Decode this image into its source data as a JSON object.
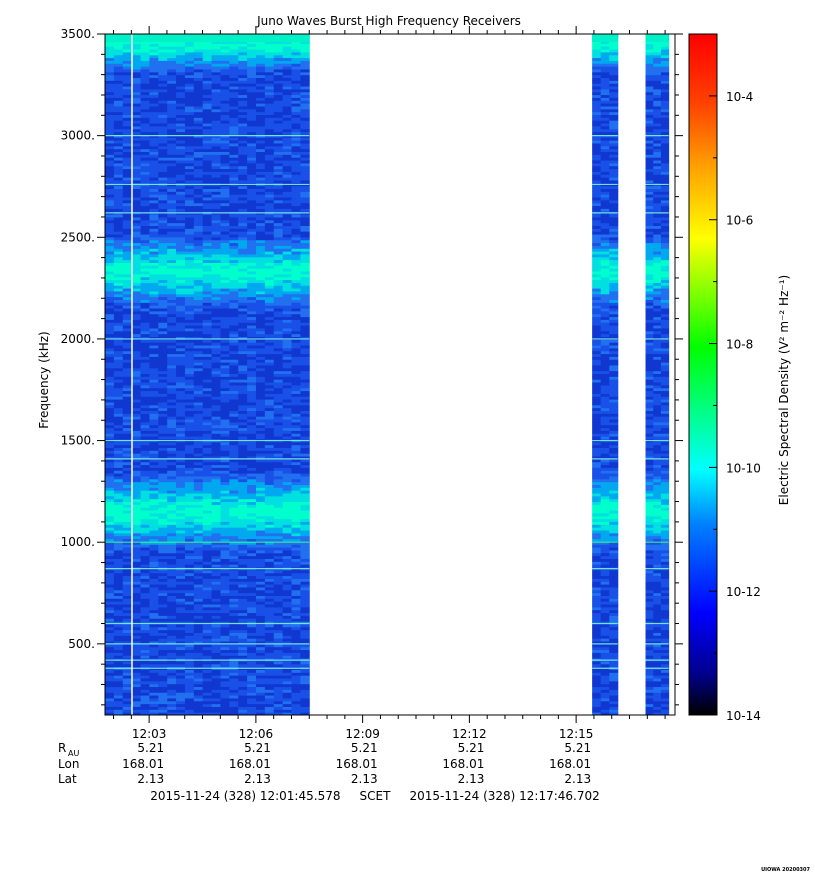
{
  "chart_data": {
    "type": "heatmap",
    "title": "Juno Waves Burst High Frequency Receivers",
    "ylabel": "Frequency (kHz)",
    "y_ticks": [
      "3500.",
      "3000.",
      "2500.",
      "2000.",
      "1500.",
      "1000.",
      "500."
    ],
    "y_tick_values": [
      3500,
      3000,
      2500,
      2000,
      1500,
      1000,
      500
    ],
    "ylim": [
      150,
      3500
    ],
    "xlim": [
      "12:01:45.578",
      "12:17:46.702"
    ],
    "x_ticks": [
      "12:03",
      "12:06",
      "12:09",
      "12:12",
      "12:15"
    ],
    "x_tick_minutes": [
      3,
      6,
      9,
      12,
      15
    ],
    "data_segments_minutes": [
      [
        1.76,
        7.5
      ],
      [
        15.45,
        16.17
      ],
      [
        16.95,
        17.6
      ]
    ],
    "enhanced_bands_khz": [
      [
        2250,
        2420
      ],
      [
        1050,
        1250
      ],
      [
        3400,
        3500
      ]
    ],
    "colorbar": {
      "label": "Electric Spectral Density",
      "units": "(V² m⁻² Hz⁻¹)",
      "scale": "log",
      "range": [
        1e-14,
        0.001
      ],
      "ticks": [
        "10-4",
        "10-6",
        "10-8",
        "10-10",
        "10-12",
        "10-14"
      ],
      "tick_exponents": [
        -4,
        -6,
        -8,
        -10,
        -12,
        -14
      ],
      "colors": [
        "#000000",
        "#00008b",
        "#0000ff",
        "#0080ff",
        "#00ffff",
        "#00ff80",
        "#00ff00",
        "#80ff00",
        "#ffff00",
        "#ffa500",
        "#ff4000",
        "#ff0000"
      ]
    },
    "ephemeris": {
      "rows": [
        {
          "label": "R",
          "sub": "AU",
          "values": [
            "5.21",
            "5.21",
            "5.21",
            "5.21",
            "5.21"
          ]
        },
        {
          "label": "Lon",
          "values": [
            "168.01",
            "168.01",
            "168.01",
            "168.01",
            "168.01"
          ]
        },
        {
          "label": "Lat",
          "values": [
            "2.13",
            "2.13",
            "2.13",
            "2.13",
            "2.13"
          ]
        }
      ]
    },
    "time_range_text": "2015-11-24 (328) 12:01:45.578     SCET     2015-11-24 (328) 12:17:46.702",
    "footer": "UIOWA 20200307"
  }
}
